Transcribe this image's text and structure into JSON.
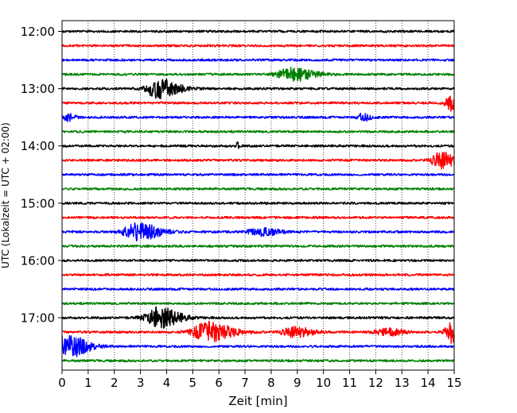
{
  "chart_data": {
    "type": "line",
    "title": "",
    "xlabel": "Zeit  [min]",
    "ylabel": "UTC (Lokalzeit = UTC + 02:00)",
    "xlim": [
      0,
      15
    ],
    "x_ticks": [
      "0",
      "1",
      "2",
      "3",
      "4",
      "5",
      "6",
      "7",
      "8",
      "9",
      "10",
      "11",
      "12",
      "13",
      "14",
      "15"
    ],
    "y_ticks": [
      "12:00",
      "13:00",
      "14:00",
      "15:00",
      "16:00",
      "17:00"
    ],
    "grid": "vertical dotted",
    "rows": [
      {
        "start": "12:00",
        "color": "#000000",
        "events": []
      },
      {
        "start": "12:15",
        "color": "#ff0000",
        "events": []
      },
      {
        "start": "12:30",
        "color": "#0000ff",
        "events": []
      },
      {
        "start": "12:45",
        "color": "#008000",
        "events": [
          {
            "t": 8.8,
            "amp": 0.55,
            "dur": 1.4
          }
        ]
      },
      {
        "start": "13:00",
        "color": "#000000",
        "events": [
          {
            "t": 3.7,
            "amp": 0.85,
            "dur": 1.2
          }
        ]
      },
      {
        "start": "13:15",
        "color": "#ff0000",
        "events": [
          {
            "t": 14.9,
            "amp": 0.6,
            "dur": 0.6
          }
        ]
      },
      {
        "start": "13:30",
        "color": "#0000ff",
        "events": [
          {
            "t": 0.2,
            "amp": 0.35,
            "dur": 0.4
          },
          {
            "t": 11.5,
            "amp": 0.3,
            "dur": 0.5
          }
        ]
      },
      {
        "start": "13:45",
        "color": "#008000",
        "events": []
      },
      {
        "start": "14:00",
        "color": "#000000",
        "events": [
          {
            "t": 6.7,
            "amp": 0.35,
            "dur": 0.15
          }
        ]
      },
      {
        "start": "14:15",
        "color": "#ff0000",
        "events": [
          {
            "t": 14.5,
            "amp": 0.65,
            "dur": 0.9
          }
        ]
      },
      {
        "start": "14:30",
        "color": "#0000ff",
        "events": []
      },
      {
        "start": "14:45",
        "color": "#008000",
        "events": []
      },
      {
        "start": "15:00",
        "color": "#000000",
        "events": []
      },
      {
        "start": "15:15",
        "color": "#ff0000",
        "events": []
      },
      {
        "start": "15:30",
        "color": "#0000ff",
        "events": [
          {
            "t": 2.9,
            "amp": 0.7,
            "dur": 1.4
          },
          {
            "t": 7.6,
            "amp": 0.3,
            "dur": 1.2
          }
        ]
      },
      {
        "start": "15:45",
        "color": "#008000",
        "events": []
      },
      {
        "start": "16:00",
        "color": "#000000",
        "events": []
      },
      {
        "start": "16:15",
        "color": "#ff0000",
        "events": []
      },
      {
        "start": "16:30",
        "color": "#0000ff",
        "events": []
      },
      {
        "start": "16:45",
        "color": "#008000",
        "events": []
      },
      {
        "start": "17:00",
        "color": "#000000",
        "events": [
          {
            "t": 3.7,
            "amp": 0.85,
            "dur": 1.3
          }
        ]
      },
      {
        "start": "17:15",
        "color": "#ff0000",
        "events": [
          {
            "t": 5.6,
            "amp": 0.8,
            "dur": 1.5
          },
          {
            "t": 8.9,
            "amp": 0.4,
            "dur": 1.2
          },
          {
            "t": 12.4,
            "amp": 0.3,
            "dur": 1.0
          },
          {
            "t": 14.9,
            "amp": 0.9,
            "dur": 0.6
          }
        ]
      },
      {
        "start": "17:30",
        "color": "#0000ff",
        "events": [
          {
            "t": 0.15,
            "amp": 1.0,
            "dur": 1.3
          }
        ]
      },
      {
        "start": "17:45",
        "color": "#008000",
        "events": []
      }
    ]
  }
}
